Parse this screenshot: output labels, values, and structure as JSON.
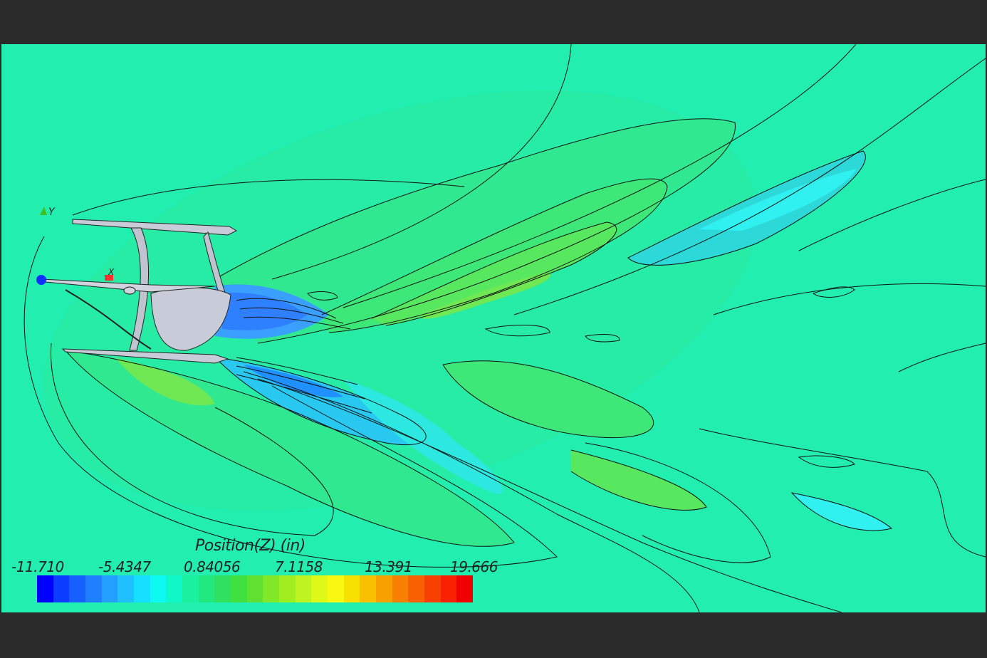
{
  "legend": {
    "title": "Position(Z) (in)",
    "ticks": [
      "-11.710",
      "-5.4347",
      "0.84056",
      "7.1158",
      "13.391",
      "19.666"
    ]
  },
  "axes": {
    "y_label": "Y",
    "x_label": "X"
  },
  "colors": {
    "background_frame": "#2b2b2b",
    "field_base": "#22eeb0",
    "colorbar": [
      "#0000ff",
      "#0b3cff",
      "#1560ff",
      "#1f80ff",
      "#23a0ff",
      "#1fc0ff",
      "#15e0ff",
      "#0cf8f0",
      "#10f8c8",
      "#1af0a0",
      "#22e880",
      "#30e060",
      "#40e040",
      "#60e030",
      "#80e828",
      "#a0ee20",
      "#c0f420",
      "#e0f818",
      "#f8f810",
      "#f8e000",
      "#f8c000",
      "#f8a000",
      "#f88000",
      "#f86000",
      "#f84000",
      "#f82000",
      "#f00000"
    ]
  }
}
